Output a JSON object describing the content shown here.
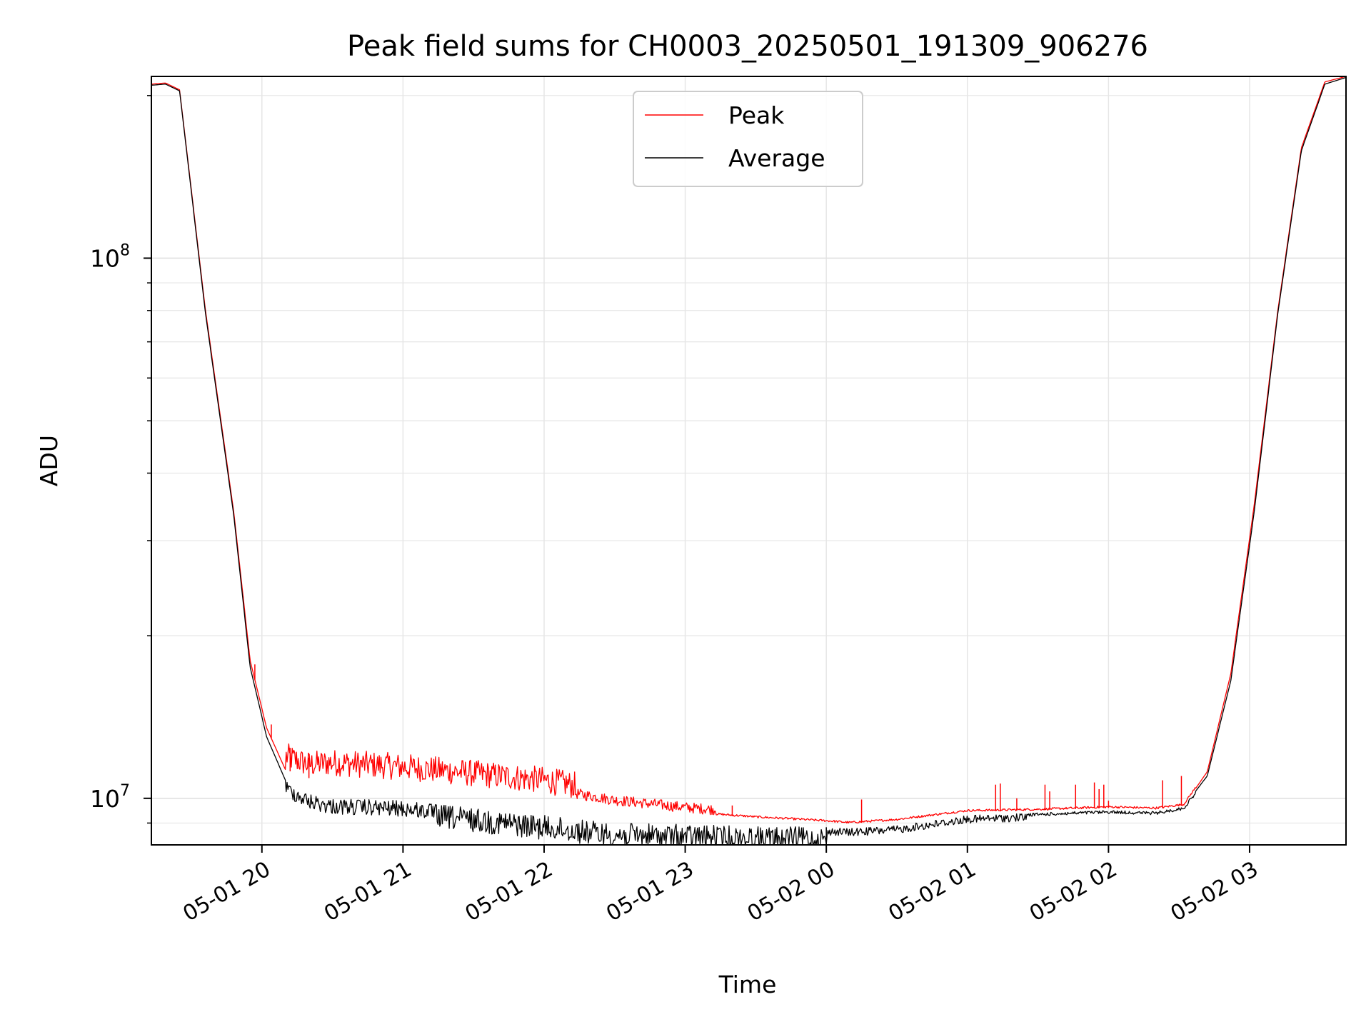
{
  "chart_data": {
    "type": "line",
    "title": "Peak field sums for CH0003_20250501_191309_906276",
    "xlabel": "Time",
    "ylabel": "ADU",
    "yscale": "log",
    "xlim": [
      "2025-05-01T19:13:00",
      "2025-05-02T03:41:00"
    ],
    "ylim": [
      8200000,
      217000000
    ],
    "grid": true,
    "legend_position": "top-center",
    "x_ticks": [
      {
        "t": "2025-05-01T20:00:00",
        "label": "05-01 20"
      },
      {
        "t": "2025-05-01T21:00:00",
        "label": "05-01 21"
      },
      {
        "t": "2025-05-01T22:00:00",
        "label": "05-01 22"
      },
      {
        "t": "2025-05-01T23:00:00",
        "label": "05-01 23"
      },
      {
        "t": "2025-05-02T00:00:00",
        "label": "05-02 00"
      },
      {
        "t": "2025-05-02T01:00:00",
        "label": "05-02 01"
      },
      {
        "t": "2025-05-02T02:00:00",
        "label": "05-02 02"
      },
      {
        "t": "2025-05-02T03:00:00",
        "label": "05-02 03"
      }
    ],
    "y_major_ticks": [
      {
        "value": 10000000,
        "base": "10",
        "exp": "7"
      },
      {
        "value": 100000000,
        "base": "10",
        "exp": "8"
      }
    ],
    "y_minor_ticks": [
      9000000,
      20000000,
      30000000,
      40000000,
      50000000,
      60000000,
      70000000,
      80000000,
      90000000,
      200000000
    ],
    "series": [
      {
        "name": "Peak",
        "color": "#ff0000",
        "x": [
          "2025-05-01T19:13:00",
          "2025-05-01T19:19:00",
          "2025-05-01T19:25:00",
          "2025-05-01T19:36:00",
          "2025-05-01T19:48:00",
          "2025-05-01T19:55:00",
          "2025-05-01T20:02:00",
          "2025-05-01T20:10:00",
          "2025-05-01T20:20:00",
          "2025-05-01T20:30:00",
          "2025-05-01T21:00:00",
          "2025-05-01T21:30:00",
          "2025-05-01T22:00:00",
          "2025-05-01T22:30:00",
          "2025-05-01T23:00:00",
          "2025-05-01T23:30:00",
          "2025-05-02T00:00:00",
          "2025-05-02T00:10:00",
          "2025-05-02T00:30:00",
          "2025-05-02T01:00:00",
          "2025-05-02T01:30:00",
          "2025-05-02T02:00:00",
          "2025-05-02T02:20:00",
          "2025-05-02T02:32:00",
          "2025-05-02T02:42:00",
          "2025-05-02T02:52:00",
          "2025-05-02T03:02:00",
          "2025-05-02T03:12:00",
          "2025-05-02T03:22:00",
          "2025-05-02T03:32:00",
          "2025-05-02T03:41:00"
        ],
        "y": [
          210000000,
          211000000,
          205000000,
          80000000,
          34000000,
          18000000,
          13500000,
          11300000,
          10900000,
          11000000,
          10800000,
          10500000,
          10200000,
          9700000,
          9400000,
          9200000,
          9050000,
          8980000,
          9100000,
          9450000,
          9500000,
          9600000,
          9550000,
          9700000,
          11200000,
          17000000,
          35000000,
          80000000,
          160000000,
          212000000,
          217000000
        ],
        "spikes": [
          {
            "x": "2025-05-01T19:52:00",
            "y": 23500000
          },
          {
            "x": "2025-05-01T19:57:00",
            "y": 17700000
          },
          {
            "x": "2025-05-01T20:04:00",
            "y": 13700000
          },
          {
            "x": "2025-05-01T20:12:00",
            "y": 12400000
          },
          {
            "x": "2025-05-01T20:20:00",
            "y": 11900000
          },
          {
            "x": "2025-05-01T23:20:00",
            "y": 9700000
          },
          {
            "x": "2025-05-02T00:15:00",
            "y": 9950000
          },
          {
            "x": "2025-05-02T01:12:00",
            "y": 10600000
          },
          {
            "x": "2025-05-02T01:14:00",
            "y": 10650000
          },
          {
            "x": "2025-05-02T01:21:00",
            "y": 10000000
          },
          {
            "x": "2025-05-02T01:33:00",
            "y": 10600000
          },
          {
            "x": "2025-05-02T01:35:00",
            "y": 10300000
          },
          {
            "x": "2025-05-02T01:46:00",
            "y": 10600000
          },
          {
            "x": "2025-05-02T01:54:00",
            "y": 10700000
          },
          {
            "x": "2025-05-02T01:56:00",
            "y": 10400000
          },
          {
            "x": "2025-05-02T01:58:00",
            "y": 10600000
          },
          {
            "x": "2025-05-02T02:00:00",
            "y": 9900000
          },
          {
            "x": "2025-05-02T02:23:00",
            "y": 10800000
          },
          {
            "x": "2025-05-02T02:31:00",
            "y": 11000000
          }
        ]
      },
      {
        "name": "Average",
        "color": "#000000",
        "x": [
          "2025-05-01T19:13:00",
          "2025-05-01T19:19:00",
          "2025-05-01T19:25:00",
          "2025-05-01T19:36:00",
          "2025-05-01T19:48:00",
          "2025-05-01T19:55:00",
          "2025-05-01T20:02:00",
          "2025-05-01T20:10:00",
          "2025-05-01T20:20:00",
          "2025-05-01T20:30:00",
          "2025-05-01T21:00:00",
          "2025-05-01T21:30:00",
          "2025-05-01T22:00:00",
          "2025-05-01T22:30:00",
          "2025-05-01T23:00:00",
          "2025-05-01T23:30:00",
          "2025-05-02T00:00:00",
          "2025-05-02T00:10:00",
          "2025-05-02T00:30:00",
          "2025-05-02T01:00:00",
          "2025-05-02T01:30:00",
          "2025-05-02T02:00:00",
          "2025-05-02T02:20:00",
          "2025-05-02T02:32:00",
          "2025-05-02T02:42:00",
          "2025-05-02T02:52:00",
          "2025-05-02T03:02:00",
          "2025-05-02T03:12:00",
          "2025-05-02T03:22:00",
          "2025-05-02T03:32:00",
          "2025-05-02T03:41:00"
        ],
        "y": [
          209000000,
          210000000,
          204000000,
          79000000,
          33500000,
          17500000,
          13000000,
          10800000,
          10200000,
          10000000,
          9900000,
          9600000,
          9300000,
          9000000,
          8950000,
          8880000,
          8840000,
          8800000,
          8900000,
          9300000,
          9400000,
          9500000,
          9450000,
          9650000,
          11000000,
          16500000,
          34000000,
          79000000,
          158000000,
          210000000,
          216000000
        ],
        "dips": [
          {
            "x": "2025-05-02T00:00:00",
            "y": 8200000
          }
        ]
      }
    ]
  }
}
